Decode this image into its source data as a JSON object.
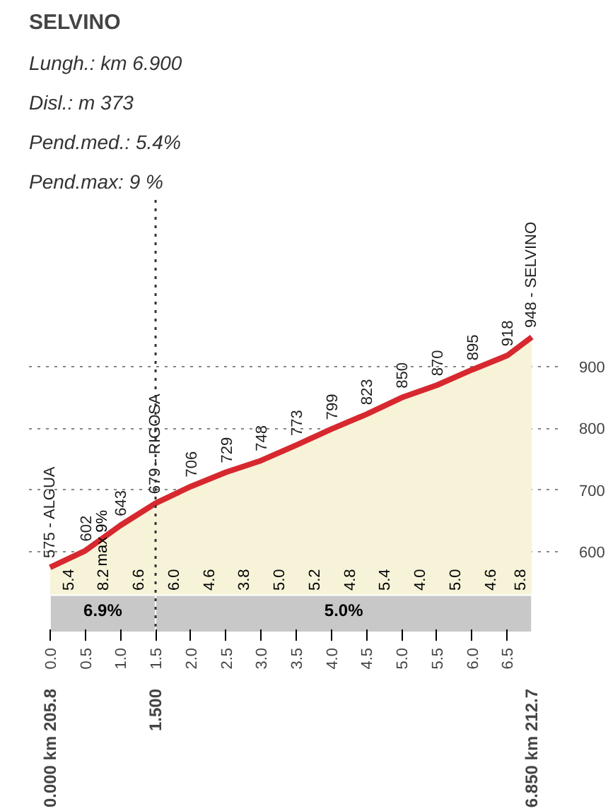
{
  "chart_data": {
    "type": "area",
    "title": "SELVINO",
    "subtitle": [
      "Lungh.: km 6.900",
      "Disl.: m 373",
      "Pend.med.: 5.4%",
      "Pend.max: 9 %"
    ],
    "x": [
      0,
      0.5,
      1.0,
      1.5,
      2.0,
      2.5,
      3.0,
      3.5,
      4.0,
      4.5,
      5.0,
      5.5,
      6.0,
      6.5,
      6.85
    ],
    "series": [
      {
        "color": "#d7282f",
        "values": [
          575,
          602,
          643,
          679,
          706,
          729,
          748,
          773,
          799,
          823,
          850,
          870,
          895,
          918,
          948
        ],
        "value_labels": [
          "575 - ALGUA",
          "602",
          "643",
          "679 - RIGOSA",
          "706",
          "729",
          "748",
          "773",
          "799",
          "823",
          "850",
          "870",
          "895",
          "918",
          "948 - SELVINO"
        ]
      }
    ],
    "xlim": [
      -0.3,
      7.3
    ],
    "ylim": [
      470,
      1170
    ],
    "xticks": [
      {
        "value": 0,
        "label": "0.0"
      },
      0.5,
      {
        "value": 1,
        "label": "1.0"
      },
      1.5,
      {
        "value": 2,
        "label": "2.0"
      },
      2.5,
      {
        "value": 3,
        "label": "3.0"
      },
      3.5,
      {
        "value": 4,
        "label": "4.0"
      },
      4.5,
      {
        "value": 5,
        "label": "5.0"
      },
      5.5,
      {
        "value": 6,
        "label": "6.0"
      },
      6.5
    ],
    "yticks": [
      600,
      700,
      800,
      900
    ],
    "grid": "y",
    "ref_lines": [
      {
        "axis": "x",
        "value": 1.5,
        "label": "1.500",
        "line_style": "dotted",
        "color": "#333333"
      }
    ],
    "bands": [
      {
        "axis": "x",
        "from": 0,
        "to": 1.5,
        "label": "6.9%",
        "color": "#c8c8c8"
      },
      {
        "axis": "x",
        "from": 1.5,
        "to": 6.85,
        "label": "5.0%",
        "color": "#c8c8c8"
      }
    ],
    "annotations": [
      "5.4",
      "8.2",
      "6.6",
      "6.0",
      "4.6",
      "3.8",
      "5.0",
      "5.2",
      "4.8",
      "5.4",
      "4.0",
      "5.0",
      "4.6",
      "5.8",
      {
        "text": "max 9%",
        "x": 0.75,
        "y": 622.5
      },
      "0.000 km 205.8",
      "6.850 km 212.7"
    ]
  }
}
